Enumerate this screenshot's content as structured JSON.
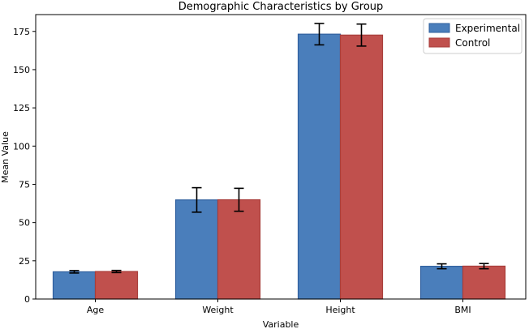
{
  "chart_data": {
    "type": "bar",
    "title": "Demographic Characteristics by Group",
    "xlabel": "Variable",
    "ylabel": "Mean Value",
    "categories": [
      "Age",
      "Weight",
      "Height",
      "BMI"
    ],
    "series": [
      {
        "name": "Experimental",
        "color": "#4a7ebb",
        "edge": "#2f5f9e",
        "values": [
          17.8,
          64.8,
          173.2,
          21.4
        ],
        "errors": [
          0.8,
          8.0,
          7.0,
          1.6
        ]
      },
      {
        "name": "Control",
        "color": "#c0504d",
        "edge": "#a83d3a",
        "values": [
          18.0,
          64.9,
          172.6,
          21.5
        ],
        "errors": [
          0.7,
          7.5,
          7.2,
          1.7
        ]
      }
    ],
    "ylim": [
      0,
      186
    ],
    "yticks": [
      0,
      25,
      50,
      75,
      100,
      125,
      150,
      175
    ],
    "legend_position": "top-right",
    "grid": false
  }
}
